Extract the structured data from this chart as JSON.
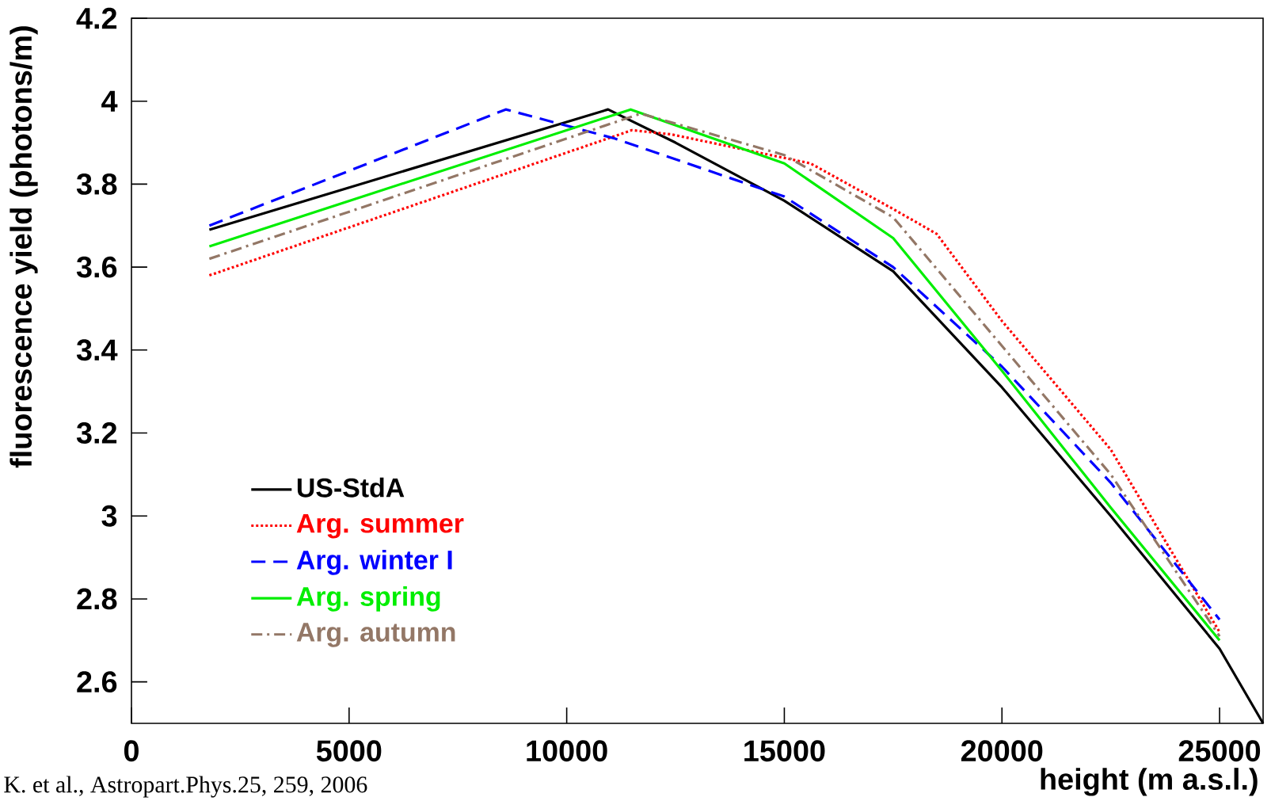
{
  "chart_data": {
    "type": "line",
    "xlabel": "height (m a.s.l.)",
    "ylabel": "fluorescence yield (photons/m)",
    "annotations": [
      "K. et al., Astropart.Phys.25, 259, 2006"
    ],
    "xlim": [
      0,
      26000
    ],
    "ylim": [
      2.5,
      4.2
    ],
    "xticks": [
      0,
      5000,
      10000,
      15000,
      20000,
      25000
    ],
    "yticks": [
      2.6,
      2.8,
      3,
      3.2,
      3.4,
      3.6,
      3.8,
      4,
      4.2
    ],
    "grid": false,
    "legend": "bottom left",
    "marker": "none",
    "series": [
      {
        "name": "US-StdA",
        "color": "#000000",
        "line_style": "solid",
        "x": [
          1790,
          10950,
          12500,
          15000,
          17500,
          20000,
          22500,
          25000,
          26000
        ],
        "values": [
          3.69,
          3.98,
          3.9,
          3.76,
          3.59,
          3.31,
          3.0,
          2.68,
          2.5
        ]
      },
      {
        "name": "Arg. summer",
        "color": "#ff0000",
        "line_style": "dotted",
        "x": [
          1790,
          11500,
          12400,
          15600,
          17500,
          18500,
          20000,
          22500,
          25000
        ],
        "values": [
          3.58,
          3.93,
          3.92,
          3.85,
          3.74,
          3.68,
          3.47,
          3.16,
          2.72
        ]
      },
      {
        "name": "Arg. winter I",
        "color": "#0000ff",
        "line_style": "dashed",
        "x": [
          1790,
          8600,
          11100,
          15000,
          17500,
          20000,
          22500,
          25000
        ],
        "values": [
          3.7,
          3.98,
          3.91,
          3.77,
          3.6,
          3.36,
          3.08,
          2.75
        ]
      },
      {
        "name": "Arg. spring",
        "color": "#00ee00",
        "line_style": "solid",
        "x": [
          1790,
          11470,
          15000,
          17500,
          20000,
          22500,
          25000
        ],
        "values": [
          3.65,
          3.98,
          3.85,
          3.67,
          3.35,
          3.02,
          2.7
        ]
      },
      {
        "name": "Arg. autumn",
        "color": "#937766",
        "line_style": "dashdot",
        "x": [
          1790,
          11700,
          15000,
          17500,
          20000,
          22500,
          25000
        ],
        "values": [
          3.62,
          3.97,
          3.87,
          3.72,
          3.41,
          3.1,
          2.71
        ]
      }
    ]
  }
}
